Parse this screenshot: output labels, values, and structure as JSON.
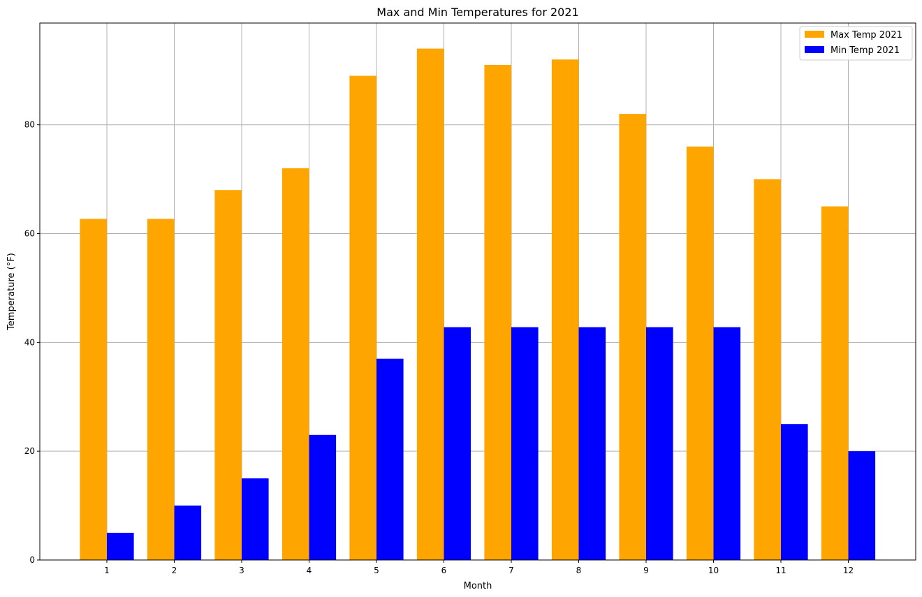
{
  "chart_data": {
    "type": "bar",
    "title": "Max and Min Temperatures for 2021",
    "xlabel": "Month",
    "ylabel": "Temperature (°F)",
    "categories": [
      "1",
      "2",
      "3",
      "4",
      "5",
      "6",
      "7",
      "8",
      "9",
      "10",
      "11",
      "12"
    ],
    "series": [
      {
        "name": "Max Temp 2021",
        "color": "#ffa500",
        "values": [
          62.7,
          62.7,
          68,
          72,
          89,
          94,
          91,
          92,
          82,
          76,
          70,
          65
        ]
      },
      {
        "name": "Min Temp 2021",
        "color": "#0000ff",
        "values": [
          5,
          10,
          15,
          23,
          37,
          42.8,
          42.8,
          42.8,
          42.8,
          42.8,
          25,
          20
        ]
      }
    ],
    "ylim": [
      0,
      98.7
    ],
    "yticks": [
      0,
      20,
      40,
      60,
      80
    ],
    "grid": true,
    "legend": "top-right"
  }
}
